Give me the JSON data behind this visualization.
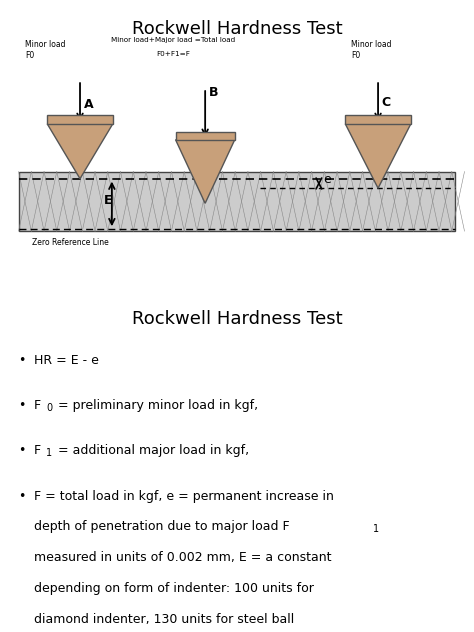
{
  "title1": "Rockwell Hardness Test",
  "title2": "Rockwell Hardness Test",
  "indenter_fill": "#c8a07a",
  "indenter_edge": "#555555",
  "material_fill": "#cccccc",
  "minor_load_text_left": "Minor load\nF0",
  "minor_load_text_right": "Minor load\nF0",
  "center_text_line1": "Minor load+Major load =Total load",
  "center_text_line2": "F0+F1=F",
  "zero_ref": "Zero Reference Line",
  "label_A": "A",
  "label_B": "B",
  "label_C": "C",
  "label_E": "E",
  "label_e": "e",
  "diagram_border": "#aaaaaa",
  "fig_width": 4.74,
  "fig_height": 6.32,
  "dpi": 100
}
